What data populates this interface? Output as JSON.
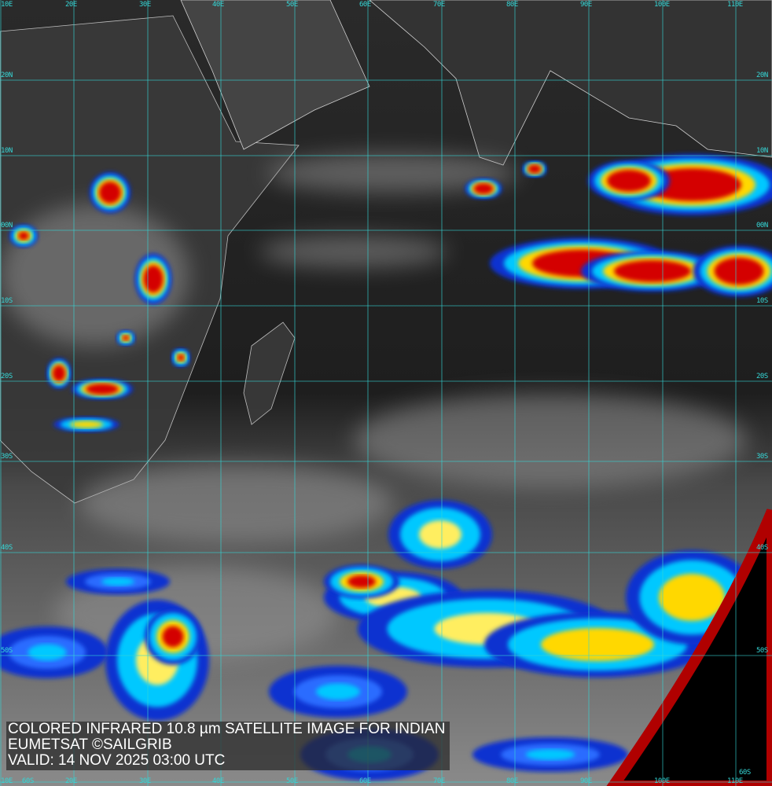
{
  "caption": {
    "line1": "COLORED INFRARED 10.8 µm SATELLITE IMAGE FOR INDIAN",
    "line2": "EUMETSAT ©SAILGRIB",
    "line3": "VALID:  14 NOV 2025 03:00 UTC"
  },
  "grid": {
    "longitudes": [
      "10E",
      "20E",
      "30E",
      "40E",
      "50E",
      "60E",
      "70E",
      "80E",
      "90E",
      "100E",
      "110E"
    ],
    "latitudes": [
      "20N",
      "10N",
      "00N",
      "10S",
      "20S",
      "30S",
      "40S",
      "50S",
      "60S"
    ],
    "line_color": "#35d6d6"
  },
  "colors": {
    "cold_cloud_high": "#d40000",
    "cold_cloud_mid": "#ffd800",
    "cloud_low": "#00c8ff",
    "cloud_edge": "#1030d0",
    "space": "#000000",
    "limb": "#b00000"
  }
}
